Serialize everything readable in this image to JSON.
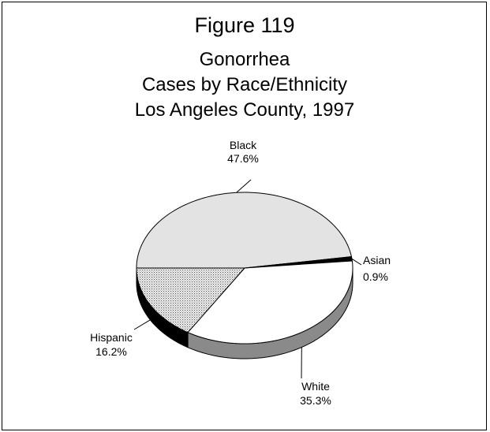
{
  "chart_data": {
    "type": "pie",
    "title": "Figure 119",
    "subtitle": [
      "Gonorrhea",
      "Cases by Race/Ethnicity",
      "Los Angeles County, 1997"
    ],
    "style": "3d-tilted",
    "slices": [
      {
        "label": "Black",
        "value": 47.6,
        "display": "47.6%",
        "fill": "#e3e3e3",
        "side_color": "#e3e3e3"
      },
      {
        "label": "Asian",
        "value": 0.9,
        "display": "0.9%",
        "fill": "#000000",
        "side_color": "#000000"
      },
      {
        "label": "White",
        "value": 35.3,
        "display": "35.3%",
        "fill": "#ffffff",
        "side_color": "#8a8a8a"
      },
      {
        "label": "Hispanic",
        "value": 16.2,
        "display": "16.2%",
        "fill": "#d9d9d9",
        "side_color": "#000000"
      }
    ],
    "legend": "none"
  }
}
